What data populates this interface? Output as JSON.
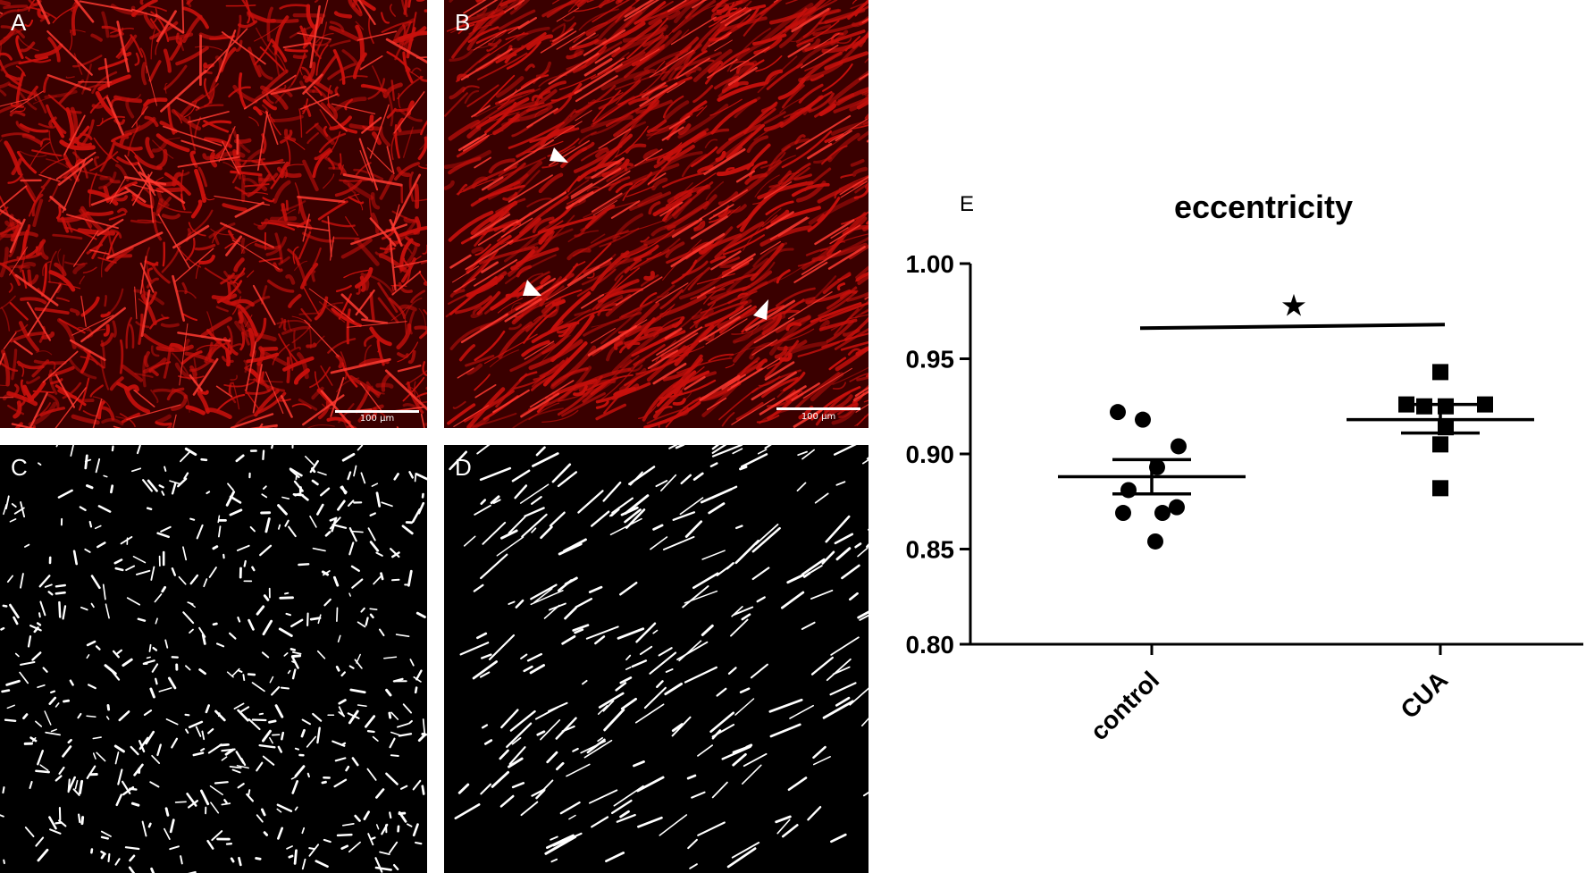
{
  "panels": [
    {
      "letter": "A",
      "type": "fluorescence",
      "scale_bar": "100 µm"
    },
    {
      "letter": "B",
      "type": "fluorescence",
      "scale_bar": "100 µm"
    },
    {
      "letter": "C",
      "type": "binary-mask"
    },
    {
      "letter": "D",
      "type": "binary-mask"
    }
  ],
  "colors": {
    "tissue_red": "#c8100c",
    "tissue_dark": "#3a0000",
    "mask_white": "#ffffff",
    "axis": "#000000"
  },
  "chart_data": {
    "type": "scatter",
    "panel_letter": "E",
    "title": "eccentricity",
    "categories": [
      "control",
      "CUA"
    ],
    "ylim": [
      0.8,
      1.0
    ],
    "yticks": [
      "0.80",
      "0.85",
      "0.90",
      "0.95",
      "1.00"
    ],
    "series": [
      {
        "category": "control",
        "marker": "circle",
        "values": [
          0.922,
          0.918,
          0.904,
          0.893,
          0.881,
          0.869,
          0.869,
          0.872,
          0.854
        ],
        "mean": 0.888,
        "sem_upper": 0.897,
        "sem_lower": 0.879
      },
      {
        "category": "CUA",
        "marker": "square",
        "values": [
          0.943,
          0.926,
          0.925,
          0.925,
          0.926,
          0.914,
          0.905,
          0.882
        ],
        "mean": 0.918,
        "sem_upper": 0.926,
        "sem_lower": 0.911
      }
    ],
    "significance": {
      "symbol": "★",
      "line_y": 0.967
    }
  }
}
